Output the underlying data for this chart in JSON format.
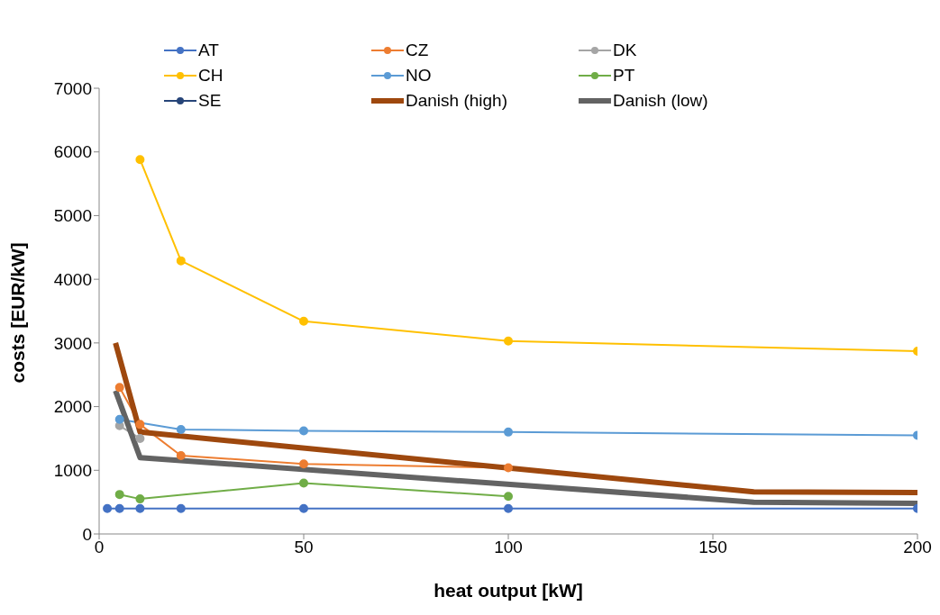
{
  "chart_data": {
    "type": "line",
    "xlabel": "heat output [kW]",
    "ylabel": "costs [EUR/kW]",
    "xlim": [
      0,
      200
    ],
    "xticks": [
      0,
      50,
      100,
      150,
      200
    ],
    "ylim": [
      0,
      7000
    ],
    "yticks": [
      0,
      1000,
      2000,
      3000,
      4000,
      5000,
      6000,
      7000
    ],
    "grid": false,
    "legend": "top",
    "marker": "circle",
    "series": [
      {
        "name": "AT",
        "color": "#4472c4",
        "x": [
          2,
          5,
          10,
          20,
          50,
          100,
          200
        ],
        "values": [
          400,
          400,
          400,
          400,
          400,
          400,
          400
        ]
      },
      {
        "name": "CZ",
        "color": "#ed7d31",
        "x": [
          5,
          10,
          20,
          50,
          100
        ],
        "values": [
          2300,
          1720,
          1230,
          1100,
          1040
        ]
      },
      {
        "name": "DK",
        "color": "#a5a5a5",
        "x": [
          5,
          10
        ],
        "values": [
          1700,
          1500
        ]
      },
      {
        "name": "CH",
        "color": "#ffc000",
        "x": [
          10,
          20,
          50,
          100,
          200
        ],
        "values": [
          5880,
          4290,
          3340,
          3030,
          2870
        ]
      },
      {
        "name": "NO",
        "color": "#5b9bd5",
        "x": [
          5,
          20,
          50,
          100,
          200
        ],
        "values": [
          1800,
          1640,
          1620,
          1600,
          1550
        ]
      },
      {
        "name": "PT",
        "color": "#70ad47",
        "x": [
          5,
          10,
          50,
          100
        ],
        "values": [
          620,
          550,
          800,
          590
        ]
      },
      {
        "name": "SE",
        "color": "#264478"
      },
      {
        "name": "Danish (high)",
        "color": "#9e480e",
        "marker": "none",
        "x": [
          4,
          10,
          160,
          200
        ],
        "values": [
          3000,
          1600,
          660,
          650
        ]
      },
      {
        "name": "Danish (low)",
        "color": "#636363",
        "marker": "none",
        "x": [
          4,
          10,
          160,
          200
        ],
        "values": [
          2250,
          1200,
          500,
          480
        ]
      }
    ]
  }
}
